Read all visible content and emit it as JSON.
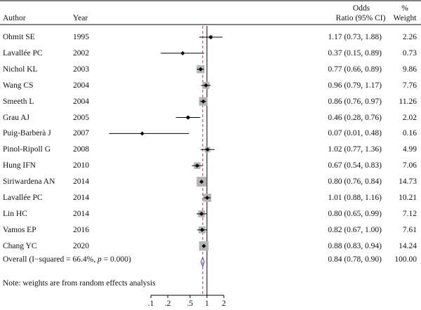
{
  "headers": {
    "author": "Author",
    "year": "Year",
    "or_line1": "Odds",
    "or_line2": "Ratio (95% CI)",
    "wt_line1": "%",
    "wt_line2": "Weight"
  },
  "footnote": "Note: weights are from random effects analysis",
  "chart_data": {
    "type": "forest",
    "x_scale": "log",
    "x_ticks": [
      ".1",
      ".2",
      ".5",
      "1",
      "2"
    ],
    "x_tick_values": [
      0.1,
      0.2,
      0.5,
      1,
      2
    ],
    "xlim": [
      0.1,
      2
    ],
    "null_line": 1,
    "overall_line": 0.84,
    "studies": [
      {
        "author": "Ohmit SE",
        "year": "1995",
        "or": 1.17,
        "lo": 0.73,
        "hi": 1.88,
        "ci_text": "1.17 (0.73, 1.88)",
        "weight": 2.26,
        "weight_text": "2.26"
      },
      {
        "author": "Lavallée PC",
        "year": "2002",
        "or": 0.37,
        "lo": 0.15,
        "hi": 0.89,
        "ci_text": "0.37 (0.15, 0.89)",
        "weight": 0.73,
        "weight_text": "0.73"
      },
      {
        "author": "Nichol KL",
        "year": "2003",
        "or": 0.77,
        "lo": 0.66,
        "hi": 0.89,
        "ci_text": "0.77 (0.66, 0.89)",
        "weight": 9.86,
        "weight_text": "9.86"
      },
      {
        "author": "Wang CS",
        "year": "2004",
        "or": 0.96,
        "lo": 0.79,
        "hi": 1.17,
        "ci_text": "0.96 (0.79, 1.17)",
        "weight": 7.76,
        "weight_text": "7.76"
      },
      {
        "author": "Smeeth L",
        "year": "2004",
        "or": 0.86,
        "lo": 0.76,
        "hi": 0.97,
        "ci_text": "0.86 (0.76, 0.97)",
        "weight": 11.26,
        "weight_text": "11.26"
      },
      {
        "author": "Grau AJ",
        "year": "2005",
        "or": 0.46,
        "lo": 0.28,
        "hi": 0.76,
        "ci_text": "0.46 (0.28, 0.76)",
        "weight": 2.02,
        "weight_text": "2.02"
      },
      {
        "author": "Puig-Barberà J",
        "year": "2007",
        "or": 0.07,
        "lo": 0.01,
        "hi": 0.48,
        "ci_text": "0.07 (0.01, 0.48)",
        "weight": 0.16,
        "weight_text": "0.16"
      },
      {
        "author": "Pinol-Ripoll G",
        "year": "2008",
        "or": 1.02,
        "lo": 0.77,
        "hi": 1.36,
        "ci_text": "1.02 (0.77, 1.36)",
        "weight": 4.99,
        "weight_text": "4.99"
      },
      {
        "author": "Hung IFN",
        "year": "2010",
        "or": 0.67,
        "lo": 0.54,
        "hi": 0.83,
        "ci_text": "0.67 (0.54, 0.83)",
        "weight": 7.06,
        "weight_text": "7.06"
      },
      {
        "author": "Siriwardena AN",
        "year": "2014",
        "or": 0.8,
        "lo": 0.76,
        "hi": 0.84,
        "ci_text": "0.80 (0.76, 0.84)",
        "weight": 14.73,
        "weight_text": "14.73"
      },
      {
        "author": "Lavallée PC",
        "year": "2014",
        "or": 1.01,
        "lo": 0.88,
        "hi": 1.16,
        "ci_text": "1.01 (0.88, 1.16)",
        "weight": 10.21,
        "weight_text": "10.21"
      },
      {
        "author": "Lin HC",
        "year": "2014",
        "or": 0.8,
        "lo": 0.65,
        "hi": 0.99,
        "ci_text": "0.80 (0.65, 0.99)",
        "weight": 7.12,
        "weight_text": "7.12"
      },
      {
        "author": "Vamos EP",
        "year": "2016",
        "or": 0.82,
        "lo": 0.67,
        "hi": 1.0,
        "ci_text": "0.82 (0.67, 1.00)",
        "weight": 7.61,
        "weight_text": "7.61"
      },
      {
        "author": "Chang YC",
        "year": "2020",
        "or": 0.88,
        "lo": 0.83,
        "hi": 0.94,
        "ci_text": "0.88 (0.83, 0.94)",
        "weight": 14.24,
        "weight_text": "14.24"
      }
    ],
    "overall": {
      "label_prefix": "Overall (I−squared = 66.4%, ",
      "label_p": "p",
      "label_suffix": " = 0.000)",
      "or": 0.84,
      "lo": 0.78,
      "hi": 0.9,
      "ci_text": "0.84 (0.78, 0.90)",
      "weight_text": "100.00"
    },
    "colors": {
      "box": "#b4b4b4",
      "null_line": "#000000",
      "overall_line": "#b03a48",
      "diamond": "#5b4e9e"
    }
  }
}
